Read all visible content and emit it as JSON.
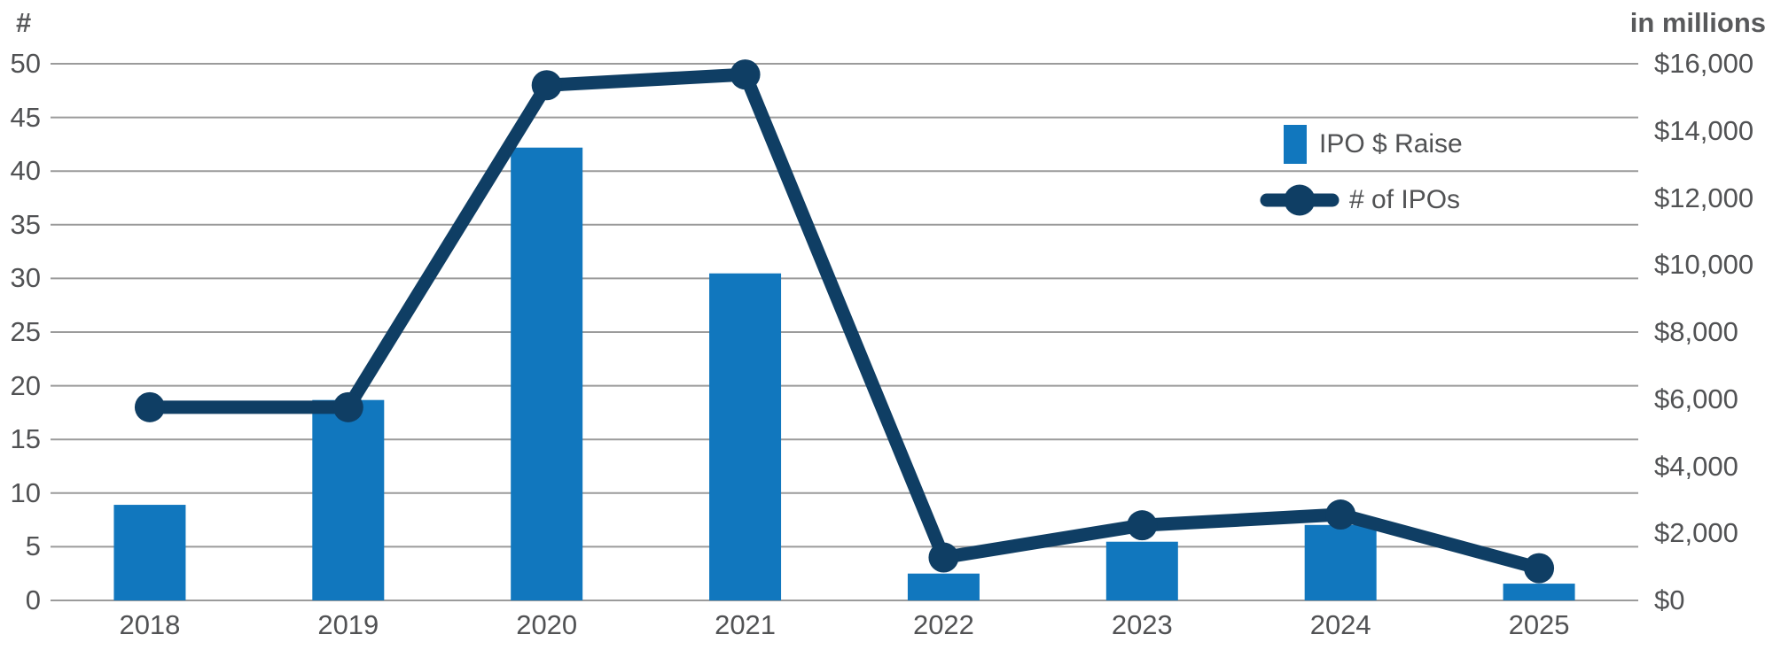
{
  "chart_data": {
    "type": "bar",
    "combo": "bar+line dual axis",
    "categories": [
      "2018",
      "2019",
      "2020",
      "2021",
      "2022",
      "2023",
      "2024",
      "2025"
    ],
    "series": [
      {
        "name": "IPO $ Raise",
        "type": "bar",
        "axis": "right",
        "values": [
          2850,
          5975,
          13500,
          9750,
          800,
          1750,
          2250,
          500
        ]
      },
      {
        "name": "# of IPOs",
        "type": "line",
        "axis": "left",
        "values": [
          18,
          18,
          48,
          49,
          4,
          7,
          8,
          3
        ]
      }
    ],
    "left_axis": {
      "title": "#",
      "min": 0,
      "max": 50,
      "step": 5,
      "ticks": [
        "0",
        "5",
        "10",
        "15",
        "20",
        "25",
        "30",
        "35",
        "40",
        "45",
        "50"
      ]
    },
    "right_axis": {
      "title": "in millions",
      "min": 0,
      "max": 16000,
      "step": 2000,
      "ticks": [
        "$0",
        "$2,000",
        "$4,000",
        "$6,000",
        "$8,000",
        "$10,000",
        "$12,000",
        "$14,000",
        "$16,000"
      ]
    },
    "grid": true,
    "legend_position": "inside top-right",
    "colors": {
      "bar": "#1177BE",
      "line": "#0F3E64",
      "grid": "#9B9B9B",
      "text": "#515254",
      "title_text": "#58595B"
    }
  }
}
